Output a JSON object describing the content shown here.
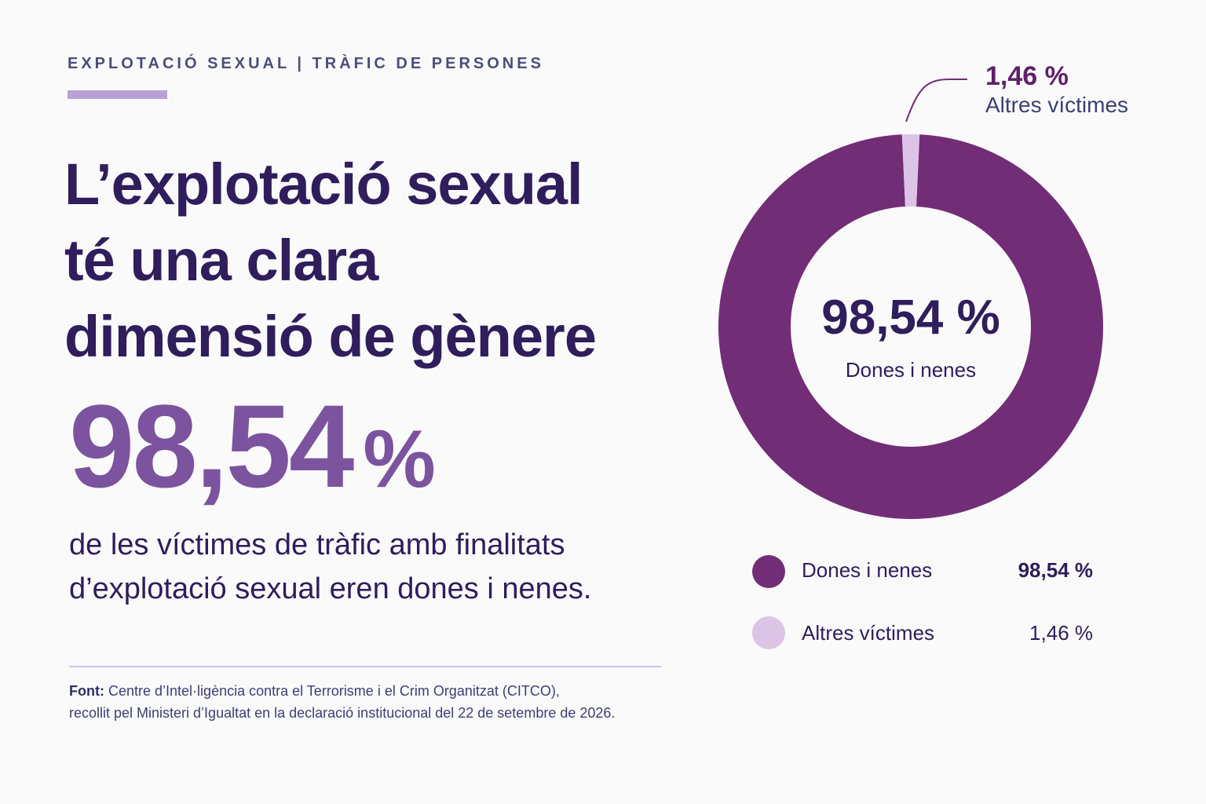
{
  "header": {
    "kicker": "EXPLOTACIÓ SEXUAL | TRÀFIC DE PERSONES"
  },
  "headline": {
    "line1": "L’explotació sexual",
    "line2": "té una clara",
    "line3": "dimensió de gènere"
  },
  "big_stat": {
    "number": "98,54",
    "percent_sign": "%"
  },
  "description": {
    "line1": "de les víctimes de tràfic amb finalitats",
    "line2": "d’explotació sexual eren dones i nenes."
  },
  "source": {
    "label": "Font:",
    "line1": "Centre d’Intel·ligència contra el Terrorisme i el Crim Organitzat (CITCO),",
    "line2": "recollit pel Ministeri d’Igualtat en la declaració institucional del 22 de setembre de 2026."
  },
  "donut": {
    "center_value": "98,54 %",
    "center_label": "Dones i nenes",
    "callout_value": "1,46 %",
    "callout_label": "Altres víctimes"
  },
  "legend": [
    {
      "label": "Dones i nenes",
      "value": "98,54 %"
    },
    {
      "label": "Altres víctimes",
      "value": "1,46 %"
    }
  ],
  "colors": {
    "primary": "#722d77",
    "secondary": "#dcc4e6",
    "accent": "#b7a1d8",
    "text_dark": "#2f1d5c",
    "stat": "#7b539f"
  },
  "chart_data": {
    "type": "pie",
    "title": "",
    "categories": [
      "Dones i nenes",
      "Altres víctimes"
    ],
    "values": [
      98.54,
      1.46
    ],
    "unit": "%",
    "legend_placement": "bottom"
  }
}
